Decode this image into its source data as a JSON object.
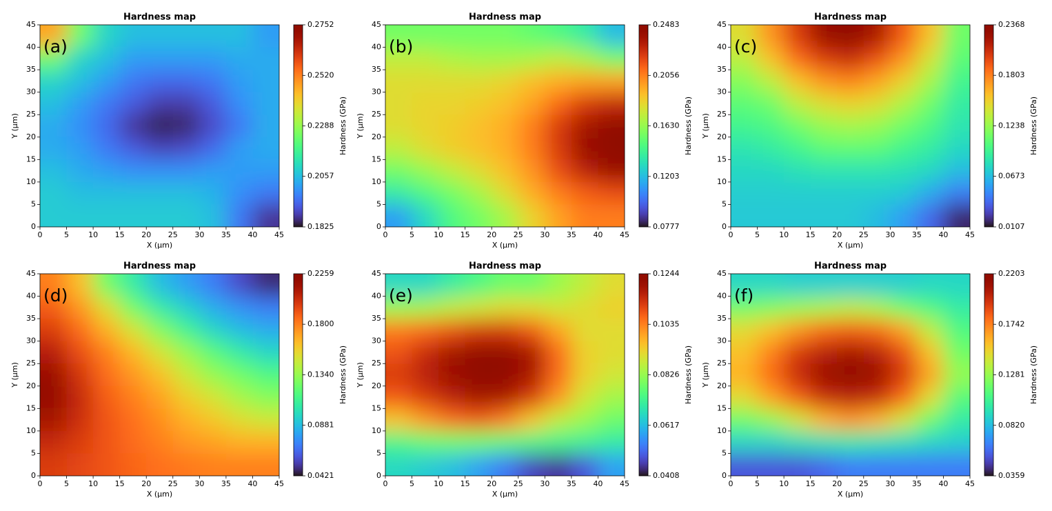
{
  "chart_data": [
    {
      "type": "heatmap",
      "title": "Hardness map",
      "panel_label": "(a)",
      "x_label": "X (µm)",
      "y_label": "Y (µm)",
      "colorbar_label": "Hardness (GPa)",
      "colormap": "turbo",
      "x": [
        2.5,
        7.5,
        12.5,
        17.5,
        22.5,
        27.5,
        32.5,
        37.5,
        42.5
      ],
      "y": [
        42.5,
        37.5,
        32.5,
        27.5,
        22.5,
        17.5,
        12.5,
        7.5,
        2.5
      ],
      "z": [
        [
          0.247,
          0.224,
          0.21,
          0.206,
          0.206,
          0.206,
          0.206,
          0.206,
          0.201
        ],
        [
          0.224,
          0.21,
          0.206,
          0.201,
          0.201,
          0.201,
          0.201,
          0.203,
          0.203
        ],
        [
          0.21,
          0.206,
          0.201,
          0.196,
          0.194,
          0.194,
          0.196,
          0.201,
          0.203
        ],
        [
          0.206,
          0.201,
          0.196,
          0.192,
          0.188,
          0.188,
          0.192,
          0.199,
          0.203
        ],
        [
          0.203,
          0.199,
          0.194,
          0.187,
          0.184,
          0.185,
          0.19,
          0.196,
          0.203
        ],
        [
          0.203,
          0.201,
          0.196,
          0.192,
          0.189,
          0.19,
          0.194,
          0.201,
          0.203
        ],
        [
          0.206,
          0.203,
          0.201,
          0.199,
          0.199,
          0.199,
          0.201,
          0.201,
          0.201
        ],
        [
          0.208,
          0.206,
          0.206,
          0.206,
          0.206,
          0.206,
          0.204,
          0.199,
          0.196
        ],
        [
          0.208,
          0.208,
          0.208,
          0.208,
          0.208,
          0.208,
          0.206,
          0.196,
          0.187
        ]
      ],
      "xlim": [
        0,
        45
      ],
      "ylim": [
        0,
        45
      ],
      "xticks": [
        0,
        5,
        10,
        15,
        20,
        25,
        30,
        35,
        40,
        45
      ],
      "yticks": [
        0,
        5,
        10,
        15,
        20,
        25,
        30,
        35,
        40,
        45
      ],
      "clim": [
        0.1825,
        0.2752
      ],
      "cticks": [
        0.1825,
        0.2057,
        0.2288,
        {
          "value": 0.252,
          "label": "0.2520"
        },
        0.2752
      ]
    },
    {
      "type": "heatmap",
      "title": "Hardness map",
      "panel_label": "(b)",
      "x_label": "X (µm)",
      "y_label": "Y (µm)",
      "colorbar_label": "Hardness (GPa)",
      "colormap": "turbo",
      "x": [
        2.5,
        7.5,
        12.5,
        17.5,
        22.5,
        27.5,
        32.5,
        37.5,
        42.5
      ],
      "y": [
        42.5,
        37.5,
        32.5,
        27.5,
        22.5,
        17.5,
        12.5,
        7.5,
        2.5
      ],
      "z": [
        [
          0.155,
          0.155,
          0.155,
          0.155,
          0.155,
          0.151,
          0.146,
          0.137,
          0.12
        ],
        [
          0.172,
          0.172,
          0.168,
          0.166,
          0.166,
          0.168,
          0.172,
          0.166,
          0.155
        ],
        [
          0.18,
          0.18,
          0.18,
          0.18,
          0.183,
          0.189,
          0.194,
          0.197,
          0.197
        ],
        [
          0.18,
          0.183,
          0.183,
          0.185,
          0.189,
          0.197,
          0.211,
          0.223,
          0.228
        ],
        [
          0.18,
          0.183,
          0.185,
          0.189,
          0.194,
          0.206,
          0.223,
          0.236,
          0.245
        ],
        [
          0.172,
          0.18,
          0.185,
          0.189,
          0.194,
          0.206,
          0.223,
          0.24,
          0.248
        ],
        [
          0.155,
          0.163,
          0.172,
          0.18,
          0.189,
          0.201,
          0.218,
          0.231,
          0.24
        ],
        [
          0.137,
          0.146,
          0.155,
          0.166,
          0.18,
          0.194,
          0.206,
          0.214,
          0.218
        ],
        [
          0.112,
          0.129,
          0.146,
          0.155,
          0.166,
          0.183,
          0.197,
          0.206,
          0.206
        ]
      ],
      "xlim": [
        0,
        45
      ],
      "ylim": [
        0,
        45
      ],
      "xticks": [
        0,
        5,
        10,
        15,
        20,
        25,
        30,
        35,
        40,
        45
      ],
      "yticks": [
        0,
        5,
        10,
        15,
        20,
        25,
        30,
        35,
        40,
        45
      ],
      "clim": [
        0.0777,
        0.2483
      ],
      "cticks": [
        0.0777,
        0.1203,
        {
          "value": 0.163,
          "label": "0.1630"
        },
        0.2056,
        0.2483
      ]
    },
    {
      "type": "heatmap",
      "title": "Hardness map",
      "panel_label": "(c)",
      "x_label": "X (µm)",
      "y_label": "Y (µm)",
      "colorbar_label": "Hardness (GPa)",
      "colormap": "turbo",
      "x": [
        2.5,
        7.5,
        12.5,
        17.5,
        22.5,
        27.5,
        32.5,
        37.5,
        42.5
      ],
      "y": [
        42.5,
        37.5,
        32.5,
        27.5,
        22.5,
        17.5,
        12.5,
        7.5,
        2.5
      ],
      "z": [
        [
          0.146,
          0.174,
          0.203,
          0.226,
          0.232,
          0.219,
          0.192,
          0.158,
          0.112
        ],
        [
          0.135,
          0.158,
          0.187,
          0.203,
          0.21,
          0.196,
          0.174,
          0.142,
          0.106
        ],
        [
          0.119,
          0.135,
          0.158,
          0.174,
          0.18,
          0.169,
          0.151,
          0.128,
          0.097
        ],
        [
          0.106,
          0.112,
          0.135,
          0.146,
          0.151,
          0.146,
          0.131,
          0.112,
          0.09
        ],
        [
          0.097,
          0.101,
          0.112,
          0.124,
          0.128,
          0.124,
          0.112,
          0.101,
          0.085
        ],
        [
          0.085,
          0.09,
          0.097,
          0.106,
          0.108,
          0.106,
          0.097,
          0.09,
          0.079
        ],
        [
          0.079,
          0.079,
          0.083,
          0.085,
          0.085,
          0.085,
          0.083,
          0.079,
          0.067
        ],
        [
          0.074,
          0.074,
          0.074,
          0.074,
          0.074,
          0.074,
          0.072,
          0.06,
          0.045
        ],
        [
          0.072,
          0.072,
          0.072,
          0.072,
          0.072,
          0.067,
          0.056,
          0.038,
          0.017
        ]
      ],
      "xlim": [
        0,
        45
      ],
      "ylim": [
        0,
        45
      ],
      "xticks": [
        0,
        5,
        10,
        15,
        20,
        25,
        30,
        35,
        40,
        45
      ],
      "yticks": [
        0,
        5,
        10,
        15,
        20,
        25,
        30,
        35,
        40,
        45
      ],
      "clim": [
        0.0107,
        0.2368
      ],
      "cticks": [
        0.0107,
        0.0673,
        0.1238,
        0.1803,
        0.2368
      ]
    },
    {
      "type": "heatmap",
      "title": "Hardness map",
      "panel_label": "(d)",
      "x_label": "X (µm)",
      "y_label": "Y (µm)",
      "colorbar_label": "Hardness (GPa)",
      "colormap": "turbo",
      "x": [
        2.5,
        7.5,
        12.5,
        17.5,
        22.5,
        27.5,
        32.5,
        37.5,
        42.5
      ],
      "y": [
        42.5,
        37.5,
        32.5,
        27.5,
        22.5,
        17.5,
        12.5,
        7.5,
        2.5
      ],
      "z": [
        [
          0.18,
          0.162,
          0.125,
          0.106,
          0.088,
          0.079,
          0.07,
          0.057,
          0.048
        ],
        [
          0.189,
          0.174,
          0.152,
          0.125,
          0.106,
          0.094,
          0.083,
          0.075,
          0.07
        ],
        [
          0.198,
          0.185,
          0.167,
          0.149,
          0.129,
          0.112,
          0.097,
          0.088,
          0.083
        ],
        [
          0.208,
          0.193,
          0.18,
          0.165,
          0.149,
          0.134,
          0.119,
          0.106,
          0.097
        ],
        [
          0.217,
          0.2,
          0.185,
          0.174,
          0.162,
          0.147,
          0.134,
          0.125,
          0.116
        ],
        [
          0.22,
          0.204,
          0.189,
          0.18,
          0.171,
          0.158,
          0.149,
          0.138,
          0.13
        ],
        [
          0.213,
          0.202,
          0.191,
          0.184,
          0.176,
          0.167,
          0.16,
          0.152,
          0.147
        ],
        [
          0.204,
          0.198,
          0.191,
          0.185,
          0.18,
          0.174,
          0.171,
          0.167,
          0.167
        ],
        [
          0.198,
          0.195,
          0.191,
          0.187,
          0.184,
          0.182,
          0.18,
          0.18,
          0.18
        ]
      ],
      "xlim": [
        0,
        45
      ],
      "ylim": [
        0,
        45
      ],
      "xticks": [
        0,
        5,
        10,
        15,
        20,
        25,
        30,
        35,
        40,
        45
      ],
      "yticks": [
        0,
        5,
        10,
        15,
        20,
        25,
        30,
        35,
        40,
        45
      ],
      "clim": [
        0.0421,
        0.2259
      ],
      "cticks": [
        0.0421,
        0.0881,
        {
          "value": 0.134,
          "label": "0.1340"
        },
        {
          "value": 0.18,
          "label": "0.1800"
        },
        0.2259
      ]
    },
    {
      "type": "heatmap",
      "title": "Hardness map",
      "panel_label": "(e)",
      "x_label": "X (µm)",
      "y_label": "Y (µm)",
      "colorbar_label": "Hardness (GPa)",
      "colormap": "turbo",
      "x": [
        2.5,
        7.5,
        12.5,
        17.5,
        22.5,
        27.5,
        32.5,
        37.5,
        42.5
      ],
      "y": [
        42.5,
        37.5,
        32.5,
        27.5,
        22.5,
        17.5,
        12.5,
        7.5,
        2.5
      ],
      "z": [
        [
          0.066,
          0.066,
          0.07,
          0.074,
          0.078,
          0.078,
          0.083,
          0.087,
          0.091
        ],
        [
          0.083,
          0.084,
          0.087,
          0.089,
          0.091,
          0.091,
          0.089,
          0.091,
          0.093
        ],
        [
          0.104,
          0.106,
          0.109,
          0.112,
          0.112,
          0.108,
          0.099,
          0.091,
          0.091
        ],
        [
          0.109,
          0.114,
          0.119,
          0.122,
          0.122,
          0.118,
          0.106,
          0.093,
          0.091
        ],
        [
          0.112,
          0.116,
          0.12,
          0.124,
          0.123,
          0.118,
          0.106,
          0.093,
          0.089
        ],
        [
          0.108,
          0.112,
          0.116,
          0.119,
          0.118,
          0.112,
          0.101,
          0.089,
          0.084
        ],
        [
          0.095,
          0.101,
          0.106,
          0.108,
          0.104,
          0.095,
          0.087,
          0.083,
          0.078
        ],
        [
          0.074,
          0.077,
          0.078,
          0.078,
          0.076,
          0.074,
          0.073,
          0.072,
          0.07
        ],
        [
          0.066,
          0.064,
          0.062,
          0.058,
          0.053,
          0.047,
          0.045,
          0.049,
          0.058
        ]
      ],
      "xlim": [
        0,
        45
      ],
      "ylim": [
        0,
        45
      ],
      "xticks": [
        0,
        5,
        10,
        15,
        20,
        25,
        30,
        35,
        40,
        45
      ],
      "yticks": [
        0,
        5,
        10,
        15,
        20,
        25,
        30,
        35,
        40,
        45
      ],
      "clim": [
        0.0408,
        0.1244
      ],
      "cticks": [
        0.0408,
        0.0617,
        0.0826,
        0.1035,
        0.1244
      ]
    },
    {
      "type": "heatmap",
      "title": "Hardness map",
      "panel_label": "(f)",
      "x_label": "X (µm)",
      "y_label": "Y (µm)",
      "colorbar_label": "Hardness (GPa)",
      "colormap": "turbo",
      "x": [
        2.5,
        7.5,
        12.5,
        17.5,
        22.5,
        27.5,
        32.5,
        37.5,
        42.5
      ],
      "y": [
        42.5,
        37.5,
        32.5,
        27.5,
        22.5,
        17.5,
        12.5,
        7.5,
        2.5
      ],
      "z": [
        [
          0.091,
          0.091,
          0.088,
          0.088,
          0.088,
          0.088,
          0.088,
          0.091,
          0.091
        ],
        [
          0.119,
          0.123,
          0.128,
          0.132,
          0.137,
          0.132,
          0.119,
          0.11,
          0.1
        ],
        [
          0.147,
          0.156,
          0.169,
          0.18,
          0.183,
          0.18,
          0.165,
          0.137,
          0.11
        ],
        [
          0.156,
          0.174,
          0.193,
          0.202,
          0.207,
          0.202,
          0.187,
          0.156,
          0.119
        ],
        [
          0.161,
          0.18,
          0.198,
          0.211,
          0.22,
          0.211,
          0.193,
          0.165,
          0.128
        ],
        [
          0.147,
          0.165,
          0.183,
          0.198,
          0.202,
          0.198,
          0.18,
          0.147,
          0.113
        ],
        [
          0.119,
          0.128,
          0.143,
          0.161,
          0.169,
          0.161,
          0.143,
          0.119,
          0.1
        ],
        [
          0.091,
          0.091,
          0.095,
          0.097,
          0.1,
          0.097,
          0.095,
          0.091,
          0.088
        ],
        [
          0.054,
          0.054,
          0.054,
          0.058,
          0.064,
          0.064,
          0.064,
          0.064,
          0.064
        ]
      ],
      "xlim": [
        0,
        45
      ],
      "ylim": [
        0,
        45
      ],
      "xticks": [
        0,
        5,
        10,
        15,
        20,
        25,
        30,
        35,
        40,
        45
      ],
      "yticks": [
        0,
        5,
        10,
        15,
        20,
        25,
        30,
        35,
        40,
        45
      ],
      "clim": [
        0.0359,
        0.2203
      ],
      "cticks": [
        0.0359,
        {
          "value": 0.082,
          "label": "0.0820"
        },
        0.1281,
        0.1742,
        0.2203
      ]
    }
  ]
}
